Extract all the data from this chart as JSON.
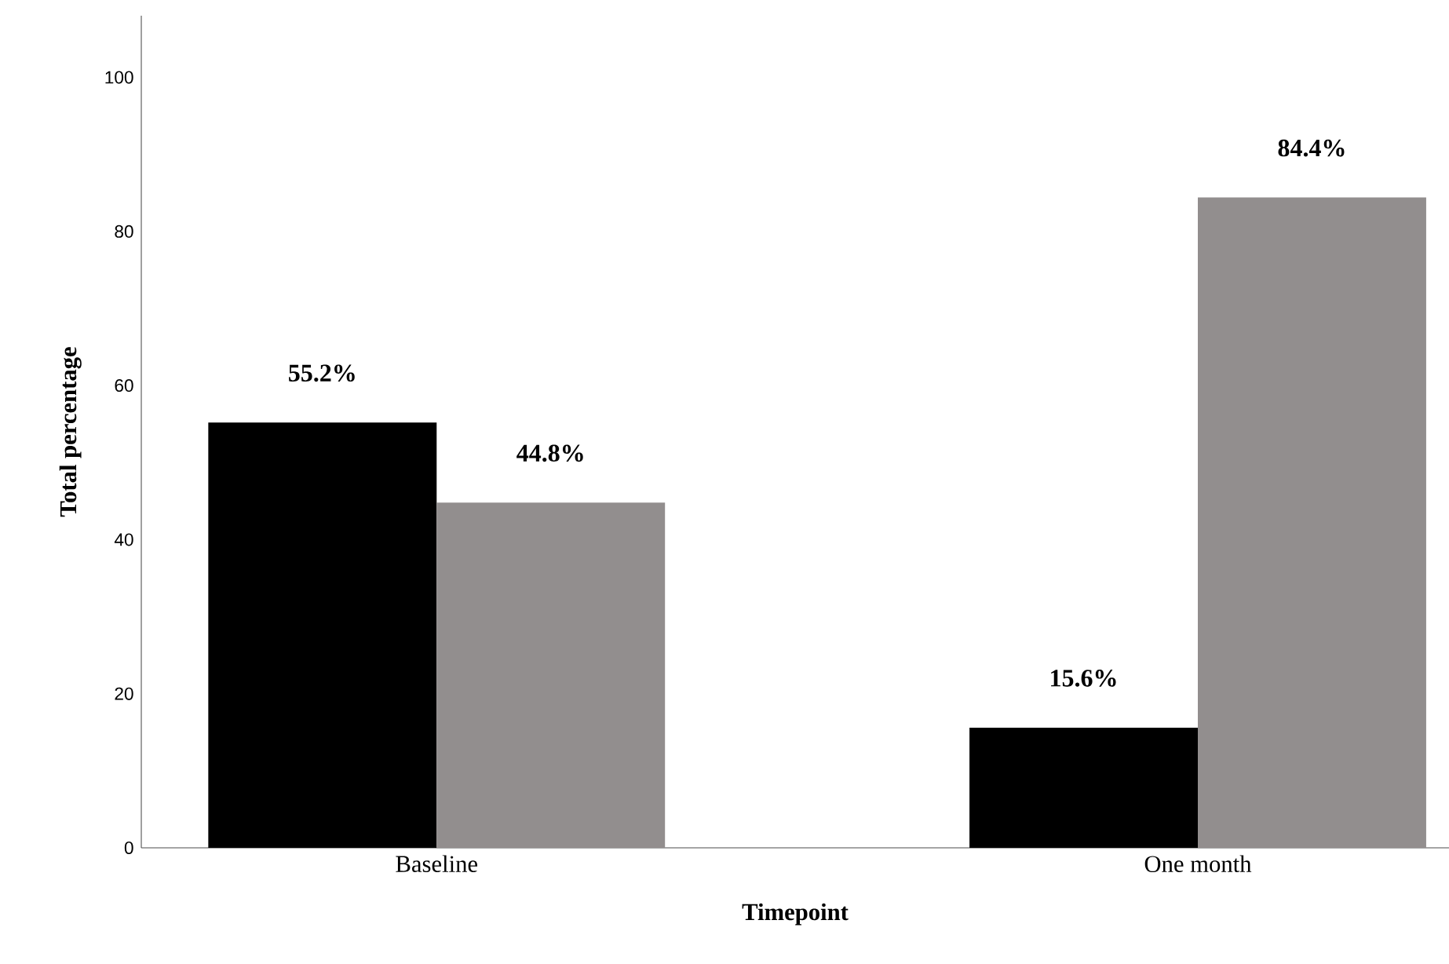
{
  "chart_data": {
    "type": "bar",
    "xlabel": "Timepoint",
    "ylabel": "Total percentage",
    "categories": [
      "Baseline",
      "One month"
    ],
    "series": [
      {
        "color": "#000000",
        "values": [
          55.2,
          15.6
        ],
        "value_labels": [
          "55.2%",
          "15.6%"
        ]
      },
      {
        "color": "#928e8e",
        "values": [
          44.8,
          84.4
        ],
        "value_labels": [
          "44.8%",
          "84.4%"
        ]
      }
    ],
    "ylim": [
      0,
      108
    ],
    "yticks": [
      0,
      20,
      40,
      60,
      80,
      100
    ]
  }
}
